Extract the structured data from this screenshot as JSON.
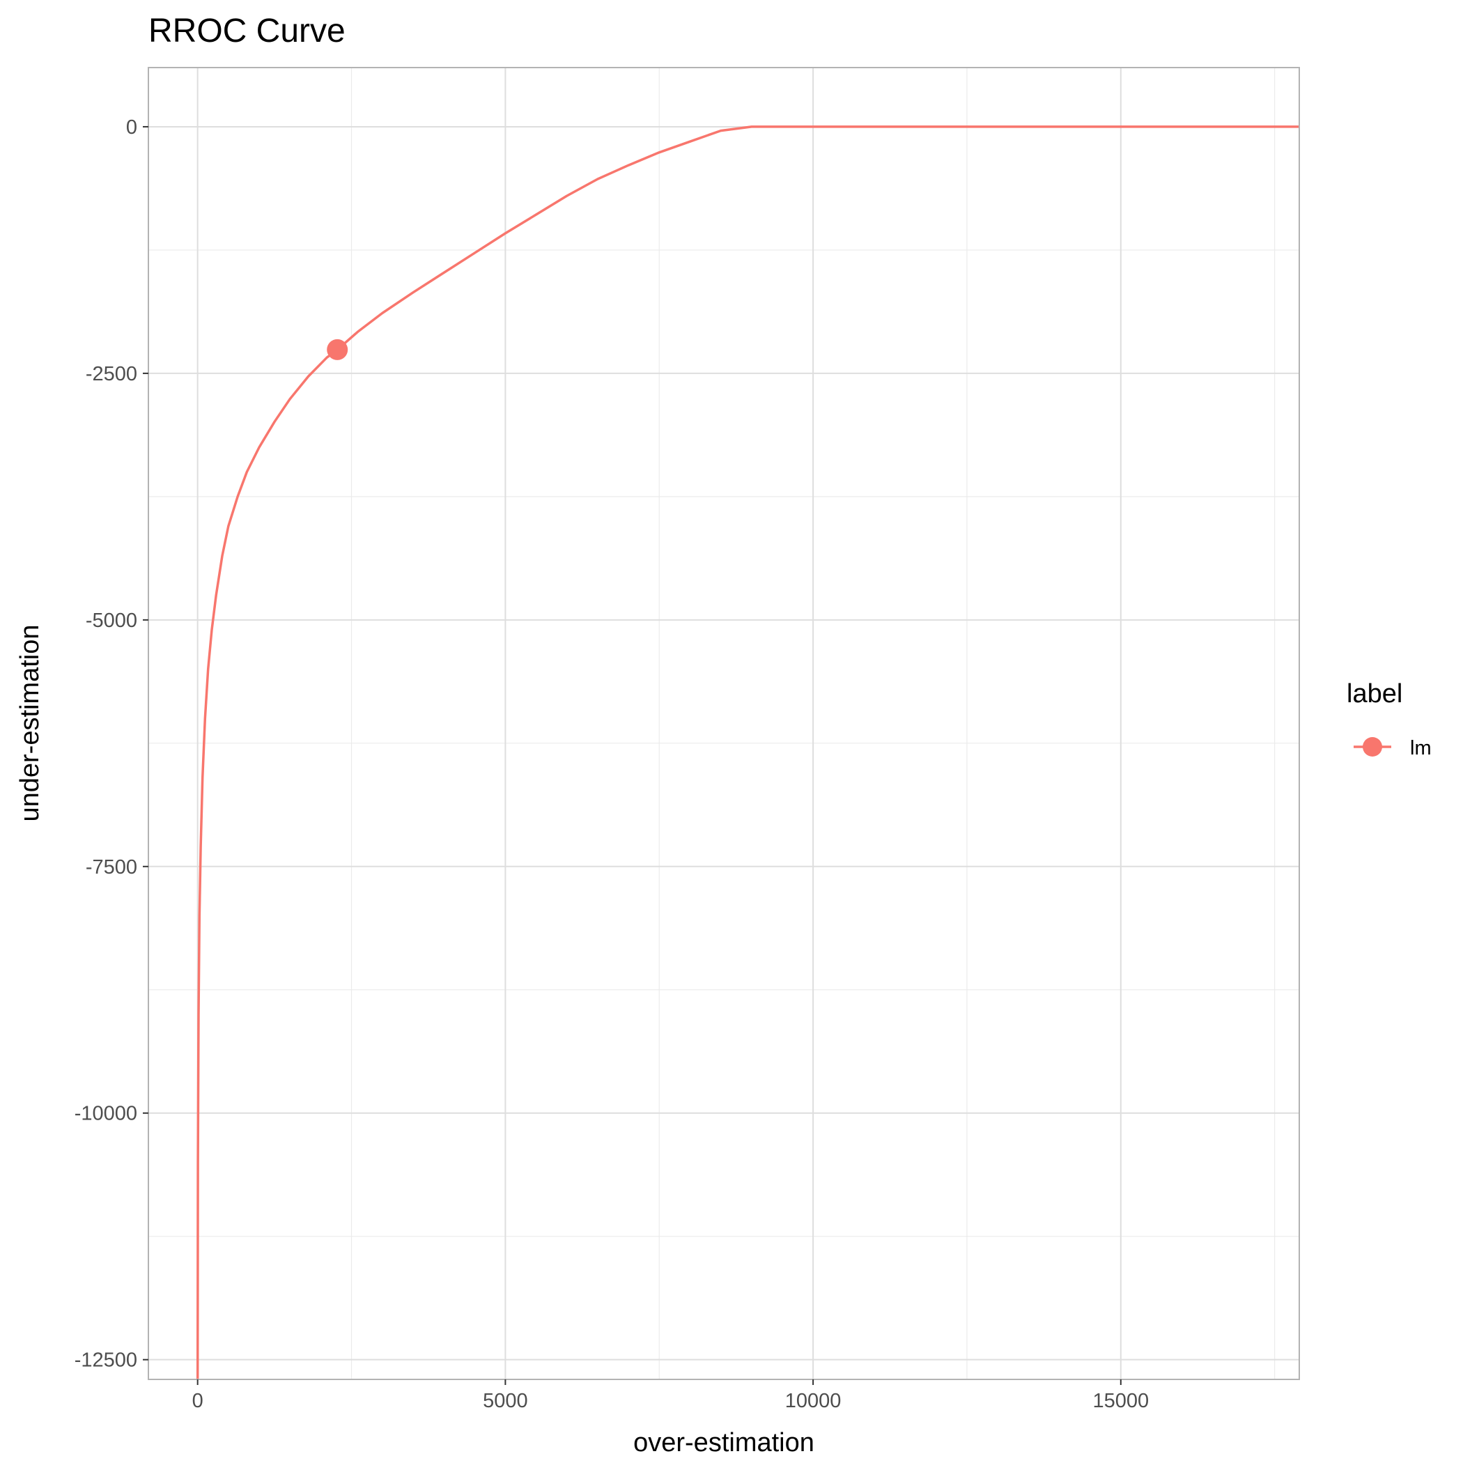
{
  "chart_data": {
    "type": "line",
    "title": "RROC Curve",
    "xlabel": "over-estimation",
    "ylabel": "under-estimation",
    "xlim": [
      -800,
      17900
    ],
    "ylim": [
      -12700,
      600
    ],
    "x_ticks": [
      0,
      5000,
      10000,
      15000
    ],
    "x_tick_labels": [
      "0",
      "5000",
      "10000",
      "15000"
    ],
    "y_ticks": [
      0,
      -2500,
      -5000,
      -7500,
      -10000,
      -12500
    ],
    "y_tick_labels": [
      "0",
      "-2500",
      "-5000",
      "-7500",
      "-10000",
      "-12500"
    ],
    "grid": true,
    "legend": {
      "title": "label",
      "position": "right"
    },
    "series": [
      {
        "name": "lm",
        "color": "#F8766D",
        "x": [
          0,
          5,
          15,
          30,
          50,
          80,
          120,
          170,
          230,
          300,
          400,
          500,
          650,
          800,
          1000,
          1250,
          1500,
          1800,
          2100,
          2270,
          2600,
          3000,
          3500,
          4000,
          4500,
          5000,
          5500,
          6000,
          6500,
          7000,
          7500,
          8000,
          8500,
          9000,
          9500,
          10000,
          10500,
          11000,
          11500,
          12000,
          12500,
          13000,
          14000,
          15000,
          16000,
          17000,
          17900
        ],
        "y": [
          -12700,
          -10500,
          -9000,
          -8000,
          -7300,
          -6600,
          -6000,
          -5500,
          -5100,
          -4750,
          -4350,
          -4050,
          -3750,
          -3500,
          -3250,
          -2990,
          -2760,
          -2530,
          -2340,
          -2260,
          -2080,
          -1890,
          -1680,
          -1480,
          -1280,
          -1080,
          -890,
          -700,
          -530,
          -390,
          -260,
          -150,
          -40,
          0,
          0,
          0,
          0,
          0,
          0,
          0,
          0,
          0,
          0,
          0,
          0,
          0,
          0
        ]
      }
    ],
    "points": [
      {
        "series": "lm",
        "x": 2270,
        "y": -2260
      }
    ]
  }
}
